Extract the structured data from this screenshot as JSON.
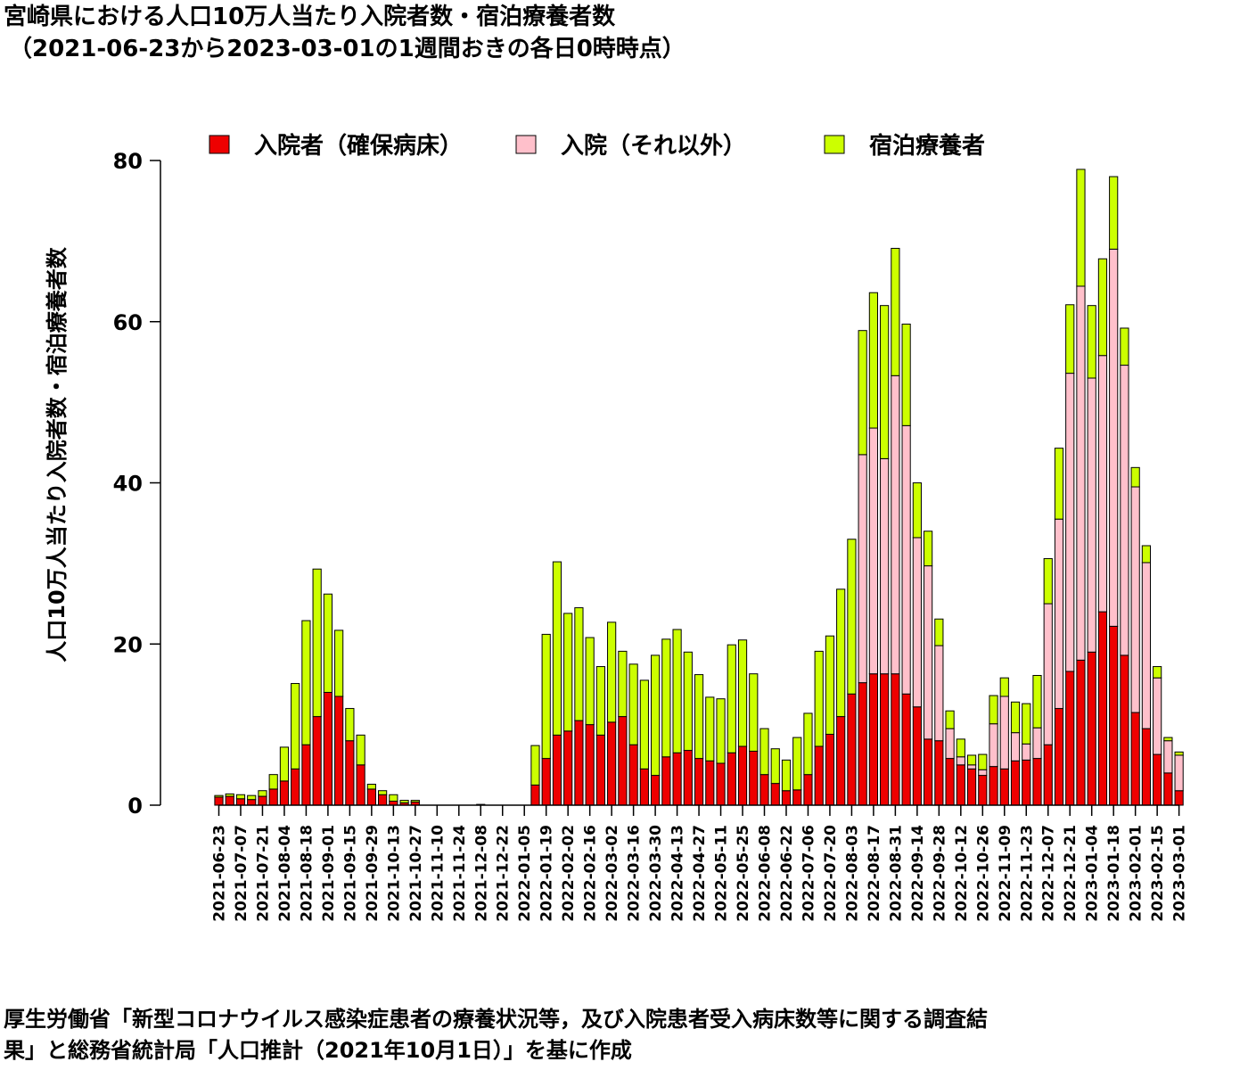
{
  "title": {
    "line1": "宮崎県における人口10万人当たり入院者数・宿泊療養者数",
    "line2": "（2021-06-23から2023-03-01の1週間おきの各日0時時点）"
  },
  "note": {
    "line1": "厚生労働省「新型コロナウイルス感染症患者の療養状況等，及び入院患者受入病床数等に関する調査結",
    "line2": "果」と総務省統計局「人口推計（2021年10月1日）」を基に作成"
  },
  "chart_data": {
    "type": "bar",
    "stacked": true,
    "ylabel": "人口10万人当たり入院者数・宿泊療養者数",
    "ylim": [
      0,
      80
    ],
    "yticks": [
      0,
      20,
      40,
      60,
      80
    ],
    "legend_position": "top",
    "categories": [
      "2021-06-23",
      "2021-06-30",
      "2021-07-07",
      "2021-07-14",
      "2021-07-21",
      "2021-07-28",
      "2021-08-04",
      "2021-08-11",
      "2021-08-18",
      "2021-08-25",
      "2021-09-01",
      "2021-09-08",
      "2021-09-15",
      "2021-09-22",
      "2021-09-29",
      "2021-10-06",
      "2021-10-13",
      "2021-10-20",
      "2021-10-27",
      "2021-11-03",
      "2021-11-10",
      "2021-11-17",
      "2021-11-24",
      "2021-12-01",
      "2021-12-08",
      "2021-12-15",
      "2021-12-22",
      "2021-12-29",
      "2022-01-05",
      "2022-01-12",
      "2022-01-19",
      "2022-01-26",
      "2022-02-02",
      "2022-02-09",
      "2022-02-16",
      "2022-02-23",
      "2022-03-02",
      "2022-03-09",
      "2022-03-16",
      "2022-03-23",
      "2022-03-30",
      "2022-04-06",
      "2022-04-13",
      "2022-04-20",
      "2022-04-27",
      "2022-05-04",
      "2022-05-11",
      "2022-05-18",
      "2022-05-25",
      "2022-06-01",
      "2022-06-08",
      "2022-06-15",
      "2022-06-22",
      "2022-06-29",
      "2022-07-06",
      "2022-07-13",
      "2022-07-20",
      "2022-07-27",
      "2022-08-03",
      "2022-08-10",
      "2022-08-17",
      "2022-08-24",
      "2022-08-31",
      "2022-09-07",
      "2022-09-14",
      "2022-09-21",
      "2022-09-28",
      "2022-10-05",
      "2022-10-12",
      "2022-10-19",
      "2022-10-26",
      "2022-11-02",
      "2022-11-09",
      "2022-11-16",
      "2022-11-23",
      "2022-11-30",
      "2022-12-07",
      "2022-12-14",
      "2022-12-21",
      "2022-12-28",
      "2023-01-04",
      "2023-01-11",
      "2023-01-18",
      "2023-01-25",
      "2023-02-01",
      "2023-02-08",
      "2023-02-15",
      "2023-02-22",
      "2023-03-01"
    ],
    "x_tick_labels": [
      "2021-06-23",
      "2021-07-07",
      "2021-07-21",
      "2021-08-04",
      "2021-08-18",
      "2021-09-01",
      "2021-09-15",
      "2021-09-29",
      "2021-10-13",
      "2021-10-27",
      "2021-11-10",
      "2021-11-24",
      "2021-12-08",
      "2021-12-22",
      "2022-01-05",
      "2022-01-19",
      "2022-02-02",
      "2022-02-16",
      "2022-03-02",
      "2022-03-16",
      "2022-03-30",
      "2022-04-13",
      "2022-04-27",
      "2022-05-11",
      "2022-05-25",
      "2022-06-08",
      "2022-06-22",
      "2022-07-06",
      "2022-07-20",
      "2022-08-03",
      "2022-08-17",
      "2022-08-31",
      "2022-09-14",
      "2022-09-28",
      "2022-10-12",
      "2022-10-26",
      "2022-11-09",
      "2022-11-23",
      "2022-12-07",
      "2022-12-21",
      "2023-01-04",
      "2023-01-18",
      "2023-02-01",
      "2023-02-15",
      "2023-03-01"
    ],
    "series": [
      {
        "name": "入院者（確保病床）",
        "color": "#ee0000",
        "values": [
          1.0,
          1.1,
          0.8,
          0.7,
          1.1,
          2.0,
          3.0,
          4.5,
          7.5,
          11.0,
          14.0,
          13.5,
          8.0,
          5.0,
          2.0,
          1.3,
          0.5,
          0.3,
          0.4,
          0,
          0,
          0,
          0,
          0,
          0.1,
          0,
          0,
          0,
          0,
          2.5,
          5.8,
          8.7,
          9.2,
          10.5,
          10.0,
          8.7,
          10.3,
          11.0,
          7.5,
          4.5,
          3.7,
          6.0,
          6.5,
          6.8,
          5.8,
          5.5,
          5.2,
          6.5,
          7.3,
          6.7,
          3.8,
          2.7,
          1.8,
          1.9,
          3.8,
          7.3,
          8.8,
          11.0,
          13.8,
          15.2,
          16.3,
          16.3,
          16.3,
          13.8,
          12.2,
          8.2,
          8.0,
          5.8,
          5.0,
          4.5,
          3.7,
          4.8,
          4.5,
          5.5,
          5.6,
          5.8,
          7.5,
          12.0,
          16.6,
          18.0,
          19.0,
          24.0,
          22.2,
          18.6,
          11.5,
          9.5,
          6.3,
          4.0,
          1.8
        ]
      },
      {
        "name": "入院（それ以外）",
        "color": "#ffc0cb",
        "values": [
          0,
          0,
          0,
          0,
          0,
          0,
          0,
          0,
          0,
          0,
          0,
          0,
          0,
          0,
          0,
          0,
          0,
          0,
          0,
          0,
          0,
          0,
          0,
          0,
          0,
          0,
          0,
          0,
          0,
          0,
          0,
          0,
          0,
          0,
          0,
          0,
          0,
          0,
          0,
          0,
          0,
          0,
          0,
          0,
          0,
          0,
          0,
          0,
          0,
          0,
          0,
          0,
          0,
          0,
          0,
          0,
          0,
          0,
          0,
          28.3,
          30.5,
          26.7,
          37.0,
          33.3,
          21.0,
          21.5,
          11.8,
          3.7,
          1.0,
          0.5,
          0.7,
          5.3,
          9.0,
          3.5,
          2.0,
          3.8,
          17.5,
          23.5,
          37.0,
          46.4,
          34.0,
          31.8,
          46.8,
          36.0,
          28.0,
          20.6,
          9.5,
          4.0,
          4.4
        ]
      },
      {
        "name": "宿泊療養者",
        "color": "#ccff00",
        "values": [
          0.2,
          0.3,
          0.5,
          0.5,
          0.7,
          1.8,
          4.2,
          10.6,
          15.4,
          18.3,
          12.2,
          8.2,
          4.0,
          3.7,
          0.6,
          0.5,
          0.8,
          0.3,
          0.2,
          0,
          0,
          0,
          0,
          0,
          0,
          0,
          0,
          0,
          0,
          4.9,
          15.4,
          21.5,
          14.6,
          14.0,
          10.8,
          8.5,
          12.4,
          8.1,
          10.0,
          11.0,
          14.9,
          14.6,
          15.3,
          12.2,
          10.4,
          7.9,
          8.0,
          13.4,
          13.2,
          9.6,
          5.7,
          4.3,
          3.8,
          6.5,
          7.6,
          11.8,
          12.2,
          15.8,
          19.2,
          15.4,
          16.8,
          19.0,
          15.8,
          12.6,
          6.8,
          4.3,
          3.3,
          2.2,
          2.2,
          1.2,
          1.9,
          3.5,
          2.3,
          3.8,
          5.0,
          6.5,
          5.6,
          8.8,
          8.5,
          14.5,
          9.0,
          12.0,
          9.0,
          4.6,
          2.4,
          2.1,
          1.4,
          0.4,
          0.4
        ]
      }
    ]
  }
}
